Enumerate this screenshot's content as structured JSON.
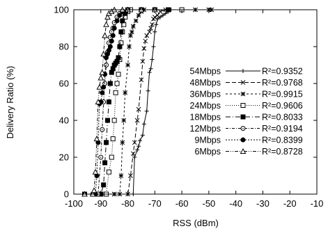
{
  "chart_data": {
    "type": "line",
    "title": "",
    "xlabel": "RSS (dBm)",
    "ylabel": "Delivery Ratio (%)",
    "xlim": [
      -100,
      -10
    ],
    "ylim": [
      0,
      100
    ],
    "xticks": [
      -100,
      -90,
      -80,
      -70,
      -60,
      -50,
      -40,
      -30,
      -20,
      -10
    ],
    "yticks": [
      0,
      20,
      40,
      60,
      80,
      100
    ],
    "grid": false,
    "legend_position": "center-right",
    "series": [
      {
        "name": "54Mbps",
        "r2": "R²=0.9352",
        "marker": "plus",
        "dash": "solid",
        "points": [
          [
            -96,
            0
          ],
          [
            -90,
            0
          ],
          [
            -85,
            0
          ],
          [
            -80,
            0
          ],
          [
            -78,
            0
          ],
          [
            -77.5,
            20
          ],
          [
            -76.5,
            24
          ],
          [
            -76,
            26
          ],
          [
            -75.5,
            29
          ],
          [
            -74.5,
            32
          ],
          [
            -74,
            38
          ],
          [
            -73,
            45
          ],
          [
            -72.5,
            56
          ],
          [
            -72,
            66
          ],
          [
            -71.5,
            68
          ],
          [
            -71,
            73
          ],
          [
            -70.5,
            80
          ],
          [
            -70,
            88
          ],
          [
            -69.5,
            92
          ],
          [
            -69,
            95
          ],
          [
            -68,
            96
          ],
          [
            -67,
            97
          ],
          [
            -66,
            98
          ],
          [
            -65,
            99
          ],
          [
            -64,
            100
          ],
          [
            -60,
            100
          ],
          [
            -55,
            100
          ],
          [
            -50,
            100
          ],
          [
            -49,
            100
          ]
        ]
      },
      {
        "name": "48Mbps",
        "r2": "R²=0.9768",
        "marker": "cross",
        "dash": "6,3",
        "points": [
          [
            -96,
            0
          ],
          [
            -90,
            0
          ],
          [
            -85,
            0
          ],
          [
            -80,
            0
          ],
          [
            -79,
            10
          ],
          [
            -78,
            22
          ],
          [
            -77.5,
            28
          ],
          [
            -76.5,
            40
          ],
          [
            -76,
            46
          ],
          [
            -75,
            62
          ],
          [
            -74.5,
            72
          ],
          [
            -74,
            79
          ],
          [
            -73.5,
            83
          ],
          [
            -73,
            86
          ],
          [
            -72,
            88
          ],
          [
            -71.5,
            90
          ],
          [
            -71,
            92
          ],
          [
            -70.5,
            95
          ],
          [
            -70,
            96
          ],
          [
            -69,
            97
          ],
          [
            -68,
            99
          ],
          [
            -66,
            100
          ],
          [
            -60,
            100
          ],
          [
            -55,
            100
          ],
          [
            -50,
            100
          ],
          [
            -49,
            100
          ]
        ]
      },
      {
        "name": "36Mbps",
        "r2": "R²=0.9915",
        "marker": "star",
        "dash": "3,3",
        "points": [
          [
            -96,
            0
          ],
          [
            -90,
            0
          ],
          [
            -85,
            0
          ],
          [
            -83,
            0
          ],
          [
            -82.5,
            10
          ],
          [
            -82,
            28
          ],
          [
            -81.5,
            40
          ],
          [
            -81,
            55
          ],
          [
            -80,
            70
          ],
          [
            -79.5,
            80
          ],
          [
            -79,
            86
          ],
          [
            -78.5,
            88
          ],
          [
            -78,
            91
          ],
          [
            -77,
            94
          ],
          [
            -76,
            97
          ],
          [
            -75,
            99
          ],
          [
            -74,
            100
          ],
          [
            -70,
            100
          ],
          [
            -65,
            100
          ],
          [
            -60,
            100
          ],
          [
            -55,
            100
          ],
          [
            -50,
            100
          ]
        ]
      },
      {
        "name": "24Mbps",
        "r2": "R²=0.9606",
        "marker": "square",
        "dash": "1,2",
        "points": [
          [
            -96,
            0
          ],
          [
            -90,
            0
          ],
          [
            -88,
            0
          ],
          [
            -87,
            12
          ],
          [
            -86,
            20
          ],
          [
            -85.5,
            30
          ],
          [
            -85,
            40
          ],
          [
            -84.5,
            55
          ],
          [
            -84,
            60
          ],
          [
            -83.5,
            65
          ],
          [
            -83,
            73
          ],
          [
            -82.5,
            82
          ],
          [
            -82,
            88
          ],
          [
            -81.5,
            92
          ],
          [
            -81,
            96
          ],
          [
            -80,
            99
          ],
          [
            -79,
            100
          ],
          [
            -75,
            100
          ],
          [
            -70,
            100
          ],
          [
            -65,
            100
          ],
          [
            -60,
            100
          ]
        ]
      },
      {
        "name": "18Mbps",
        "r2": "R²=0.8033",
        "marker": "filled-square",
        "dash": "7,3,1,3",
        "points": [
          [
            -96,
            0
          ],
          [
            -92,
            0
          ],
          [
            -90,
            0
          ],
          [
            -89,
            5
          ],
          [
            -88.5,
            17
          ],
          [
            -88,
            28
          ],
          [
            -87.5,
            40
          ],
          [
            -87,
            50
          ],
          [
            -86.5,
            60
          ],
          [
            -86,
            66
          ],
          [
            -85.5,
            68
          ],
          [
            -85,
            70
          ],
          [
            -84.5,
            71
          ],
          [
            -84,
            72
          ],
          [
            -83.5,
            74
          ],
          [
            -83,
            80
          ],
          [
            -82.5,
            88
          ],
          [
            -82,
            94
          ],
          [
            -81,
            98
          ],
          [
            -80,
            100
          ],
          [
            -75,
            100
          ],
          [
            -70,
            100
          ],
          [
            -65,
            100
          ]
        ]
      },
      {
        "name": "12Mbps",
        "r2": "R²=0.9194",
        "marker": "circle",
        "dash": "4,2,1,2",
        "points": [
          [
            -96,
            0
          ],
          [
            -93,
            0
          ],
          [
            -91,
            0
          ],
          [
            -90,
            20
          ],
          [
            -89.5,
            35
          ],
          [
            -89,
            50
          ],
          [
            -88.5,
            60
          ],
          [
            -88,
            70
          ],
          [
            -87.5,
            77
          ],
          [
            -87,
            82
          ],
          [
            -86.5,
            85
          ],
          [
            -86,
            88
          ],
          [
            -85.5,
            90
          ],
          [
            -85,
            93
          ],
          [
            -84,
            96
          ],
          [
            -83,
            98
          ],
          [
            -82,
            99
          ],
          [
            -80,
            100
          ],
          [
            -75,
            100
          ],
          [
            -70,
            100
          ],
          [
            -65,
            100
          ]
        ]
      },
      {
        "name": "9Mbps",
        "r2": "R²=0.8399",
        "marker": "filled-circle",
        "dash": "2,2",
        "points": [
          [
            -96,
            0
          ],
          [
            -93,
            0
          ],
          [
            -92,
            0
          ],
          [
            -91.5,
            10
          ],
          [
            -91,
            28
          ],
          [
            -90.5,
            49
          ],
          [
            -90,
            50
          ],
          [
            -89.5,
            55
          ],
          [
            -89,
            58
          ],
          [
            -88.5,
            65
          ],
          [
            -88,
            74
          ],
          [
            -87.5,
            76
          ],
          [
            -87,
            78
          ],
          [
            -86.5,
            80
          ],
          [
            -86,
            83
          ],
          [
            -85.5,
            86
          ],
          [
            -85,
            90
          ],
          [
            -84,
            94
          ],
          [
            -83,
            97
          ],
          [
            -82,
            99
          ],
          [
            -80,
            100
          ],
          [
            -75,
            100
          ],
          [
            -70,
            100
          ],
          [
            -65,
            100
          ]
        ]
      },
      {
        "name": "6Mbps",
        "r2": "R²=0.8728",
        "marker": "triangle",
        "dash": "5,2,1,2,1,2",
        "points": [
          [
            -96,
            0
          ],
          [
            -93,
            0
          ],
          [
            -92.5,
            2
          ],
          [
            -92,
            12
          ],
          [
            -91.5,
            30
          ],
          [
            -91,
            50
          ],
          [
            -90.5,
            58
          ],
          [
            -90,
            63
          ],
          [
            -89.5,
            66
          ],
          [
            -89,
            76
          ],
          [
            -88.5,
            86
          ],
          [
            -88,
            92
          ],
          [
            -87.5,
            96
          ],
          [
            -87,
            98
          ],
          [
            -86,
            99
          ],
          [
            -85,
            100
          ],
          [
            -82,
            100
          ],
          [
            -80,
            100
          ],
          [
            -75,
            100
          ],
          [
            -70,
            100
          ]
        ]
      }
    ]
  }
}
